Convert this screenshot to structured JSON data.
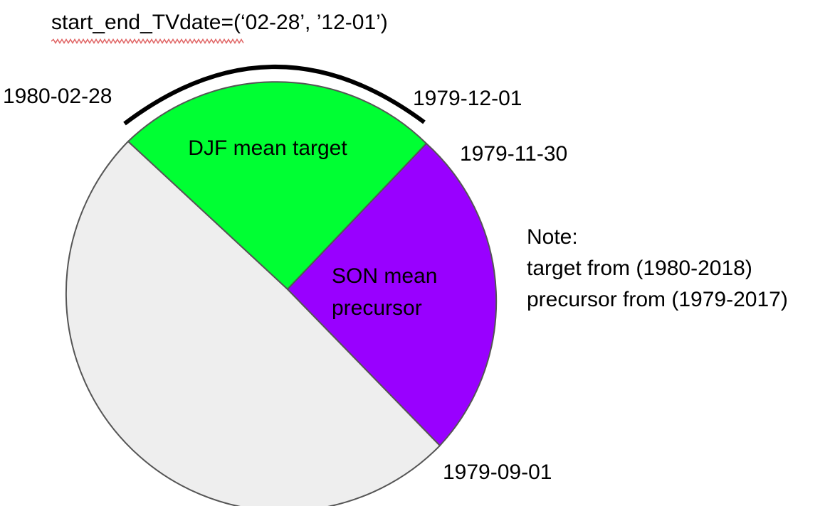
{
  "title": "start_end_TVdate=(‘02-28’, ’12-01’)",
  "segments": [
    {
      "id": "djf",
      "label_lines": [
        "DJF mean target"
      ],
      "color": "#00ff33"
    },
    {
      "id": "son",
      "label_lines": [
        "SON mean",
        "precursor"
      ],
      "color": "#9900ff"
    },
    {
      "id": "rest",
      "label_lines": [],
      "color": "#eeeeee"
    }
  ],
  "date_labels": {
    "target_start": "1980-02-28",
    "target_end": "1979-12-01",
    "precursor_end": "1979-11-30",
    "precursor_start": "1979-09-01"
  },
  "note": {
    "heading": "Note:",
    "lines": [
      "target from (1980-2018)",
      "precursor from (1979-2017)"
    ]
  },
  "colors": {
    "outline": "#555555",
    "bracket": "#000000",
    "spellcheck_underline": "#e06666"
  }
}
